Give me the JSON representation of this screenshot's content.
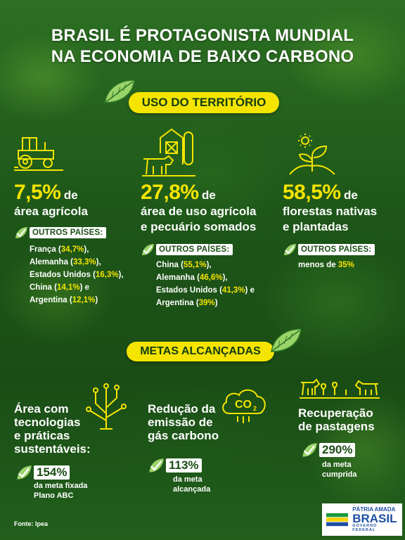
{
  "header": {
    "title_line1": "BRASIL É PROTAGONISTA MUNDIAL",
    "title_line2": "NA ECONOMIA DE BAIXO CARBONO"
  },
  "section_territory": {
    "label": "USO DO TERRITÓRIO",
    "cards": [
      {
        "stat": "7,5%",
        "stat_suffix": "de",
        "desc_lines": [
          "área agrícola"
        ],
        "tag": "OUTROS PAÍSES:",
        "items": [
          {
            "name": "França (",
            "value": "34,7%",
            "end": "),"
          },
          {
            "name": "Alemanha (",
            "value": "33,3%",
            "end": "),"
          },
          {
            "name": "Estados Unidos (",
            "value": "16,3%",
            "end": "),"
          },
          {
            "name": "China (",
            "value": "14,1%",
            "end": ") e"
          },
          {
            "name": "Argentina (",
            "value": "12,1%",
            "end": ")"
          }
        ]
      },
      {
        "stat": "27,8%",
        "stat_suffix": "de",
        "desc_lines": [
          "área de uso agrícola",
          "e pecuário somados"
        ],
        "tag": "OUTROS PAÍSES:",
        "items": [
          {
            "name": "China (",
            "value": "55,1%",
            "end": "),"
          },
          {
            "name": "Alemanha (",
            "value": "46,6%",
            "end": "),"
          },
          {
            "name": "Estados Unidos (",
            "value": "41,3%",
            "end": ") e"
          },
          {
            "name": "Argentina (",
            "value": "39%",
            "end": ")"
          }
        ]
      },
      {
        "stat": "58,5%",
        "stat_suffix": "de",
        "desc_lines": [
          "florestas nativas",
          "e plantadas"
        ],
        "tag": "OUTROS PAÍSES:",
        "items": [
          {
            "name": "menos de ",
            "value": "35%",
            "end": ""
          }
        ]
      }
    ]
  },
  "section_goals": {
    "label": "METAS ALCANÇADAS",
    "goals": [
      {
        "title_lines": [
          "Área com",
          "tecnologias",
          "e práticas",
          "sustentáveis:"
        ],
        "pct": "154%",
        "sub_lines": [
          "da meta fixada",
          "Plano ABC"
        ]
      },
      {
        "title_lines": [
          "Redução da",
          "emissão de",
          "gás carbono"
        ],
        "pct": "113%",
        "sub_lines": [
          "da meta",
          "alcançada"
        ]
      },
      {
        "title_lines": [
          "Recuperação",
          "de pastagens"
        ],
        "pct": "290%",
        "sub_lines": [
          "da meta",
          "cumprida"
        ]
      }
    ]
  },
  "footer": {
    "source": "Fonte: Ipea",
    "logo_line1": "PÁTRIA AMADA",
    "logo_line2": "BRASIL",
    "logo_line3": "GOVERNO FEDERAL"
  },
  "icons": [
    "tractor-icon",
    "barn-cow-icon",
    "sprout-sun-icon",
    "circuit-tree-icon",
    "co2-cloud-icon",
    "livestock-icon",
    "leaf-icon",
    "check-leaf-icon"
  ],
  "colors": {
    "accent": "#f5e400",
    "green_dark": "#1c4d16",
    "text": "#ffffff"
  }
}
